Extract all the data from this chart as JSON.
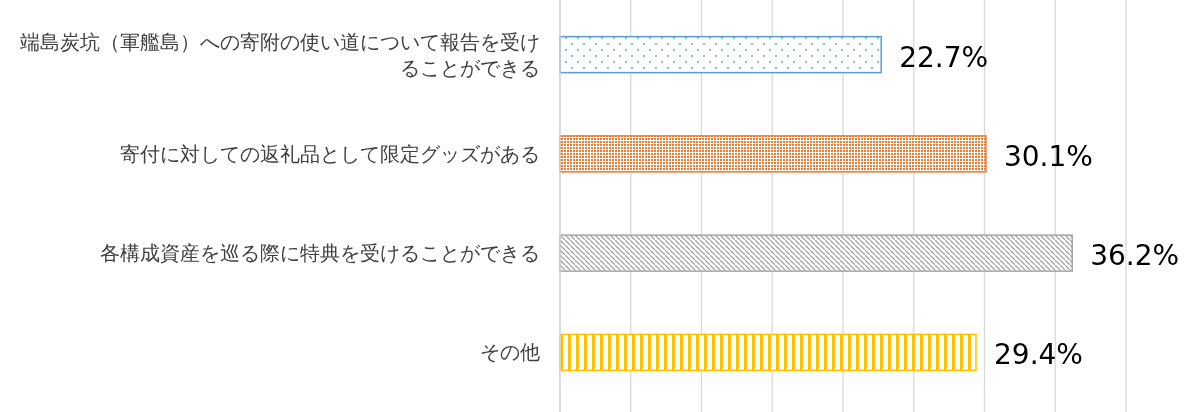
{
  "chart_data": {
    "type": "bar",
    "orientation": "horizontal",
    "categories": [
      "端島炭坑（軍艦島）への寄附の使い道について報告を受けることができる",
      "寄付に対しての返礼品として限定グッズがある",
      "各構成資産を巡る際に特典を受けることができる",
      "その他"
    ],
    "values": [
      22.7,
      30.1,
      36.2,
      29.4
    ],
    "value_labels": [
      "22.7%",
      "30.1%",
      "36.2%",
      "29.4%"
    ],
    "colors": [
      "#5b9bd5",
      "#ed7d31",
      "#a5a5a5",
      "#ffc000"
    ],
    "xlim": [
      0,
      40
    ],
    "xticks": [
      {
        "value": 0,
        "label": null
      },
      {
        "value": 5,
        "label": null
      },
      {
        "value": 10,
        "label": null
      },
      {
        "value": 15,
        "label": null
      },
      {
        "value": 20,
        "label": null
      },
      {
        "value": 25,
        "label": null
      },
      {
        "value": 30,
        "label": null
      },
      {
        "value": 35,
        "label": null
      },
      {
        "value": 40,
        "label": null
      }
    ],
    "grid": "x"
  }
}
